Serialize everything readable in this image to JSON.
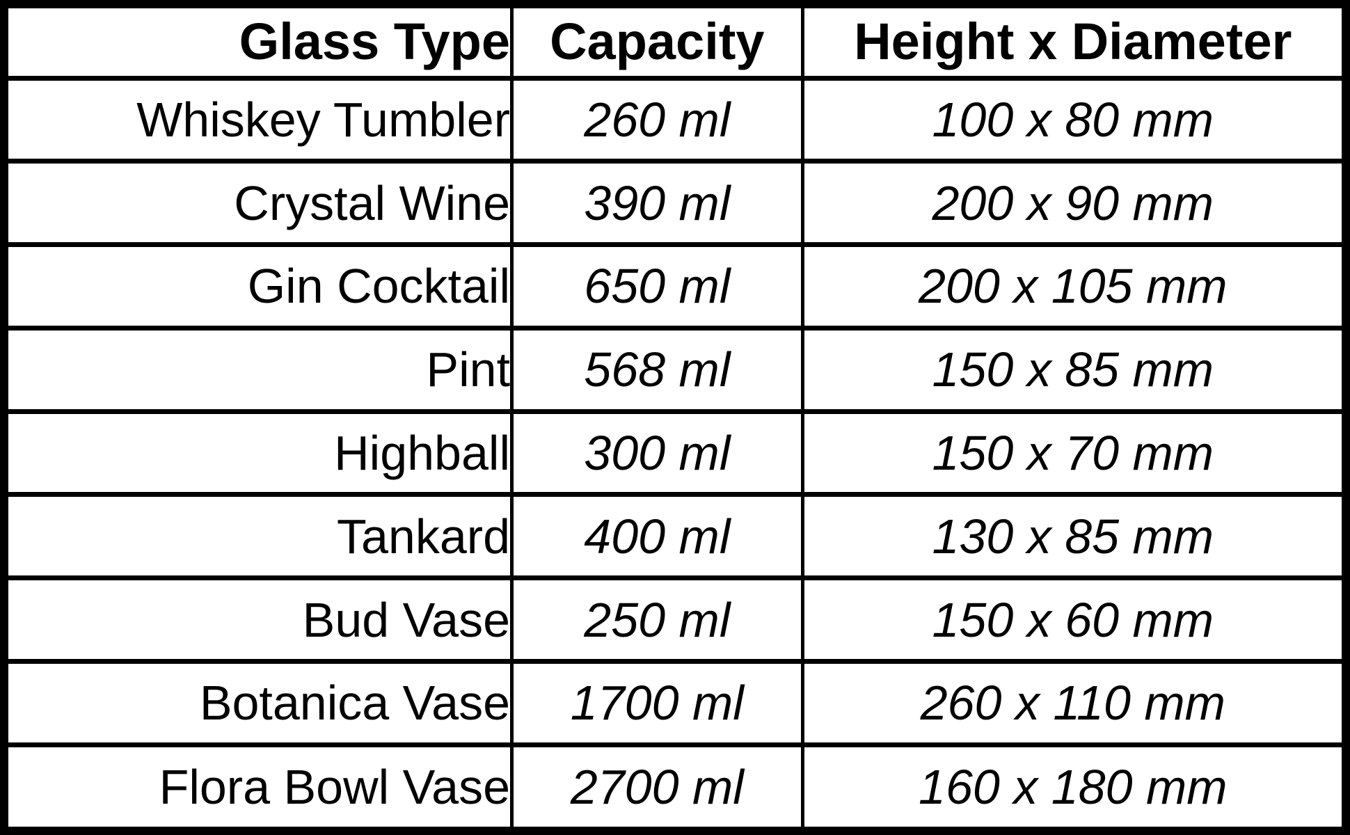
{
  "chart_data": {
    "type": "table",
    "columns": [
      "Glass Type",
      "Capacity",
      "Height x Diameter"
    ],
    "rows": [
      {
        "glass_type": "Whiskey Tumbler",
        "capacity": "260 ml",
        "height_x_diameter": "100 x 80 mm"
      },
      {
        "glass_type": "Crystal Wine",
        "capacity": "390 ml",
        "height_x_diameter": "200 x 90 mm"
      },
      {
        "glass_type": "Gin Cocktail",
        "capacity": "650 ml",
        "height_x_diameter": "200 x 105 mm"
      },
      {
        "glass_type": "Pint",
        "capacity": "568 ml",
        "height_x_diameter": "150 x 85 mm"
      },
      {
        "glass_type": "Highball",
        "capacity": "300 ml",
        "height_x_diameter": "150 x 70 mm"
      },
      {
        "glass_type": "Tankard",
        "capacity": "400 ml",
        "height_x_diameter": "130 x 85 mm"
      },
      {
        "glass_type": "Bud Vase",
        "capacity": "250 ml",
        "height_x_diameter": "150 x 60 mm"
      },
      {
        "glass_type": "Botanica Vase",
        "capacity": "1700 ml",
        "height_x_diameter": "260 x 110 mm"
      },
      {
        "glass_type": "Flora Bowl Vase",
        "capacity": "2700 ml",
        "height_x_diameter": "160 x 180 mm"
      }
    ],
    "layout": {
      "header_bold": true,
      "value_columns_italic": true,
      "first_column_align": "right",
      "value_columns_align": "center"
    },
    "colors": {
      "border": "#000000",
      "text": "#000000",
      "background": "#ffffff"
    }
  }
}
